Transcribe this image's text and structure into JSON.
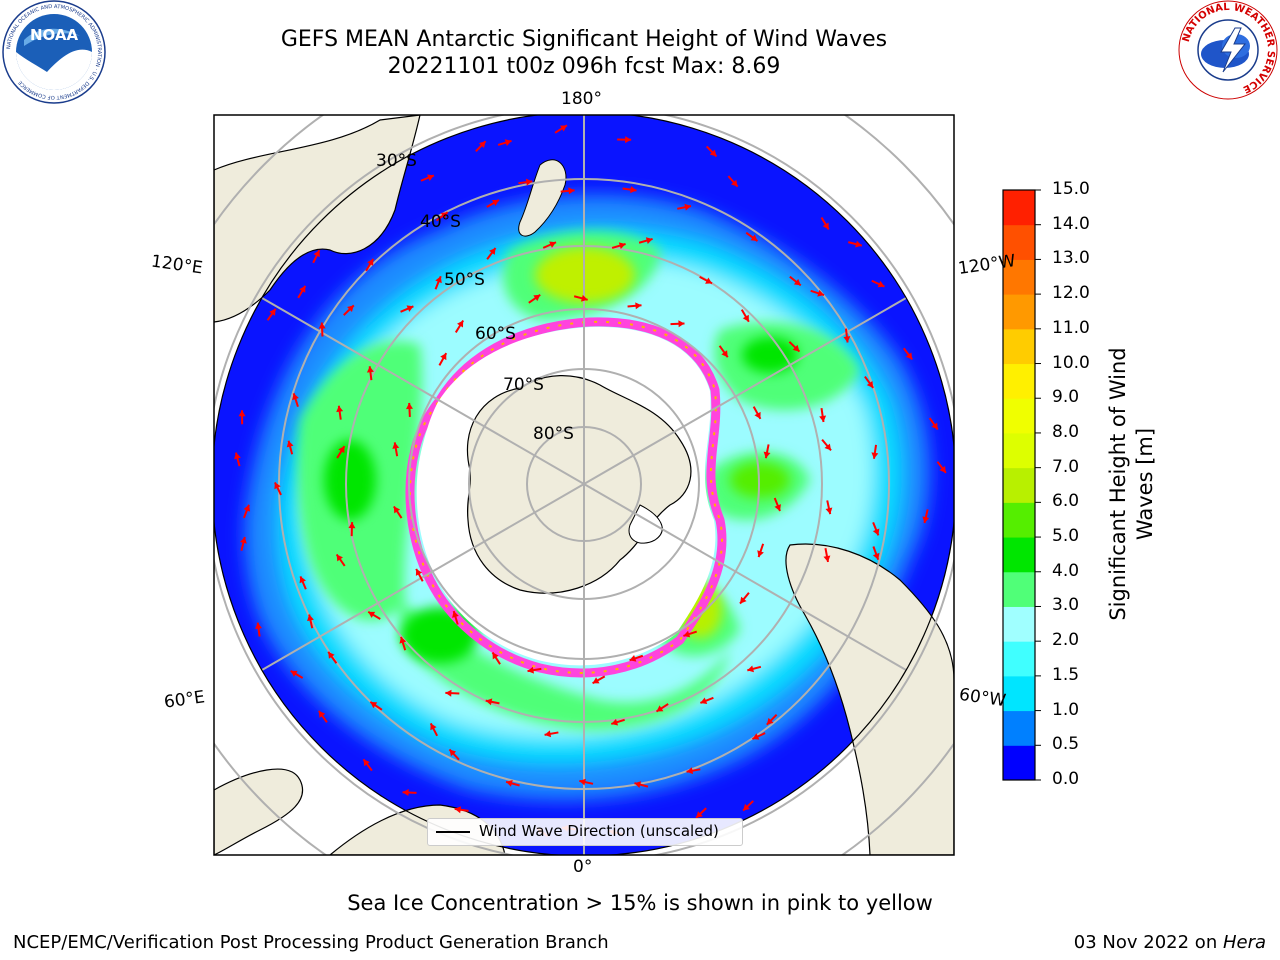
{
  "header": {
    "title_line1": "GEFS MEAN Antarctic Significant Height of Wind Waves",
    "title_line2": "20221101 t00z 096h fcst   Max: 8.69"
  },
  "logos": {
    "left": {
      "name": "noaa-logo",
      "text": "NOAA",
      "ring_text": "NATIONAL OCEANIC AND ATMOSPHERIC ADMINISTRATION · U.S. DEPARTMENT OF COMMERCE"
    },
    "right": {
      "name": "nws-logo",
      "ring_text": "NATIONAL WEATHER SERVICE"
    }
  },
  "map": {
    "projection": "south-polar-stereographic",
    "meridian_labels": {
      "top": "180°",
      "bottom": "0°",
      "left_upper": "120°E",
      "left_lower": "60°E",
      "right_upper": "120°W",
      "right_lower": "60°W"
    },
    "latitude_labels": [
      "30°S",
      "40°S",
      "50°S",
      "60°S",
      "70°S",
      "80°S"
    ],
    "colors": {
      "land": "#efecdc",
      "frame": "#000000",
      "gridline": "#b0b0b0",
      "arrow": "#ff0000",
      "sea_ice_low": "#ff44dd",
      "sea_ice_high": "#ffb300"
    },
    "legend": {
      "label": "Wind Wave Direction (unscaled)"
    }
  },
  "colorbar": {
    "title_line1": "Significant Height of Wind",
    "title_line2": "Waves [m]",
    "ticks": [
      "0.0",
      "0.5",
      "1.0",
      "1.5",
      "2.0",
      "3.0",
      "4.0",
      "5.0",
      "6.0",
      "7.0",
      "8.0",
      "9.0",
      "10.0",
      "11.0",
      "12.0",
      "13.0",
      "14.0",
      "15.0"
    ],
    "colors": [
      "#0000ff",
      "#0080ff",
      "#00e5ff",
      "#40ffff",
      "#a0ffff",
      "#50ff78",
      "#00e600",
      "#55ee00",
      "#b8f000",
      "#ddff00",
      "#f0ff00",
      "#fff000",
      "#ffcc00",
      "#ff9900",
      "#ff7700",
      "#ff5000",
      "#ff2000"
    ]
  },
  "subtitle": "Sea Ice Concentration > 15% is shown in pink to yellow",
  "footer": {
    "left": "NCEP/EMC/Verification Post Processing Product Generation Branch",
    "right_prefix": "03 Nov 2022 on ",
    "right_machine": "Hera"
  }
}
